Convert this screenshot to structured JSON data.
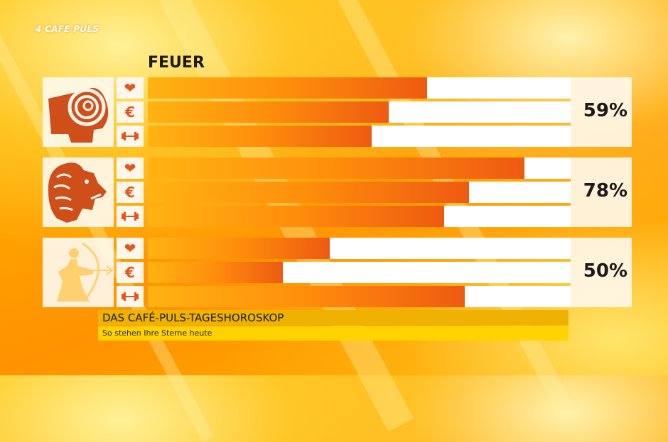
{
  "channel": {
    "logo": "4 CAFE PULS"
  },
  "category": "FEUER",
  "colors": {
    "accent": "#e2581a",
    "bar_start": "#ffb312",
    "bar_end": "#ee5a12",
    "title_bar": "#f0b200",
    "sub_bar": "#ffd200"
  },
  "signs": [
    {
      "sign": "aries-icon",
      "overall": "59%",
      "love": 0.66,
      "money": 0.57,
      "fitness": 0.53
    },
    {
      "sign": "leo-icon",
      "overall": "78%",
      "love": 0.89,
      "money": 0.76,
      "fitness": 0.7
    },
    {
      "sign": "sagittarius-icon",
      "overall": "50%",
      "love": 0.43,
      "money": 0.32,
      "fitness": 0.75
    }
  ],
  "category_icons": {
    "love": "❤",
    "money": "€",
    "fitness": "dumbbell"
  },
  "footer": {
    "title": "DAS CAFÉ-PULS-TAGESHOROSKOP",
    "subtitle": "So stehen Ihre Sterne heute"
  }
}
